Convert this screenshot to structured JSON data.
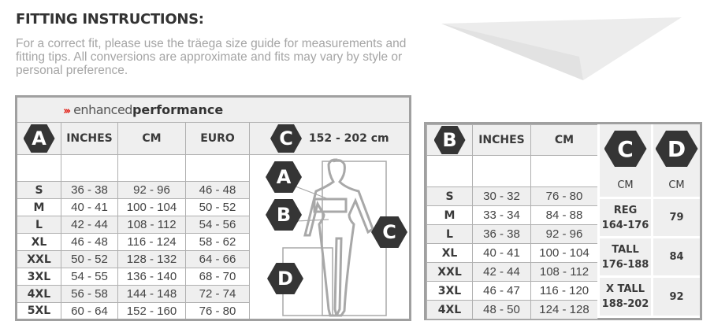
{
  "title": "FITTING INSTRUCTIONS:",
  "description": "For a correct fit, please use the träega size guide for measurements and fitting tips. All conversions are approximate and fits may vary by style or personal preference.",
  "colors": {
    "accent": "#e2231a",
    "hex_badge": "#353535",
    "header_bg": "#efefef",
    "border": "#a0a0a0"
  },
  "table_a": {
    "brand_light": "enhanced",
    "brand_bold": "performance",
    "badge": "A",
    "headers": [
      "INCHES",
      "CM",
      "EURO"
    ],
    "height_badge": "C",
    "height_range": "152 - 202 cm",
    "figure_badges": [
      "A",
      "B",
      "C",
      "D"
    ],
    "rows": [
      {
        "size": "S",
        "inches": "36 - 38",
        "cm": "92 - 96",
        "euro": "46 - 48"
      },
      {
        "size": "M",
        "inches": "40 - 41",
        "cm": "100 - 104",
        "euro": "50 - 52"
      },
      {
        "size": "L",
        "inches": "42 - 44",
        "cm": "108 - 112",
        "euro": "54 - 56"
      },
      {
        "size": "XL",
        "inches": "46 - 48",
        "cm": "116 - 124",
        "euro": "58 - 62"
      },
      {
        "size": "XXL",
        "inches": "50 - 52",
        "cm": "128 - 132",
        "euro": "64 - 66"
      },
      {
        "size": "3XL",
        "inches": "54 - 55",
        "cm": "136 - 140",
        "euro": "68 - 70"
      },
      {
        "size": "4XL",
        "inches": "56 - 58",
        "cm": "144 - 148",
        "euro": "72 - 74"
      },
      {
        "size": "5XL",
        "inches": "60 - 64",
        "cm": "152 - 160",
        "euro": "76 - 80"
      }
    ]
  },
  "table_b": {
    "badge": "B",
    "headers": [
      "INCHES",
      "CM"
    ],
    "rows": [
      {
        "size": "S",
        "inches": "30 - 32",
        "cm": "76 - 80"
      },
      {
        "size": "M",
        "inches": "33 - 34",
        "cm": "84 - 88"
      },
      {
        "size": "L",
        "inches": "36 - 38",
        "cm": "92 - 96"
      },
      {
        "size": "XL",
        "inches": "40 - 41",
        "cm": "100 - 104"
      },
      {
        "size": "XXL",
        "inches": "42 - 44",
        "cm": "108 - 112"
      },
      {
        "size": "3XL",
        "inches": "46 - 47",
        "cm": "116 - 120"
      },
      {
        "size": "4XL",
        "inches": "48 - 50",
        "cm": "124 - 128"
      }
    ],
    "c_badge": "C",
    "c_unit": "CM",
    "d_badge": "D",
    "d_unit": "CM",
    "lengths": [
      {
        "label": "REG",
        "range": "164-176",
        "d": "79"
      },
      {
        "label": "TALL",
        "range": "176-188",
        "d": "84"
      },
      {
        "label": "X TALL",
        "range": "188-202",
        "d": "92"
      }
    ]
  }
}
